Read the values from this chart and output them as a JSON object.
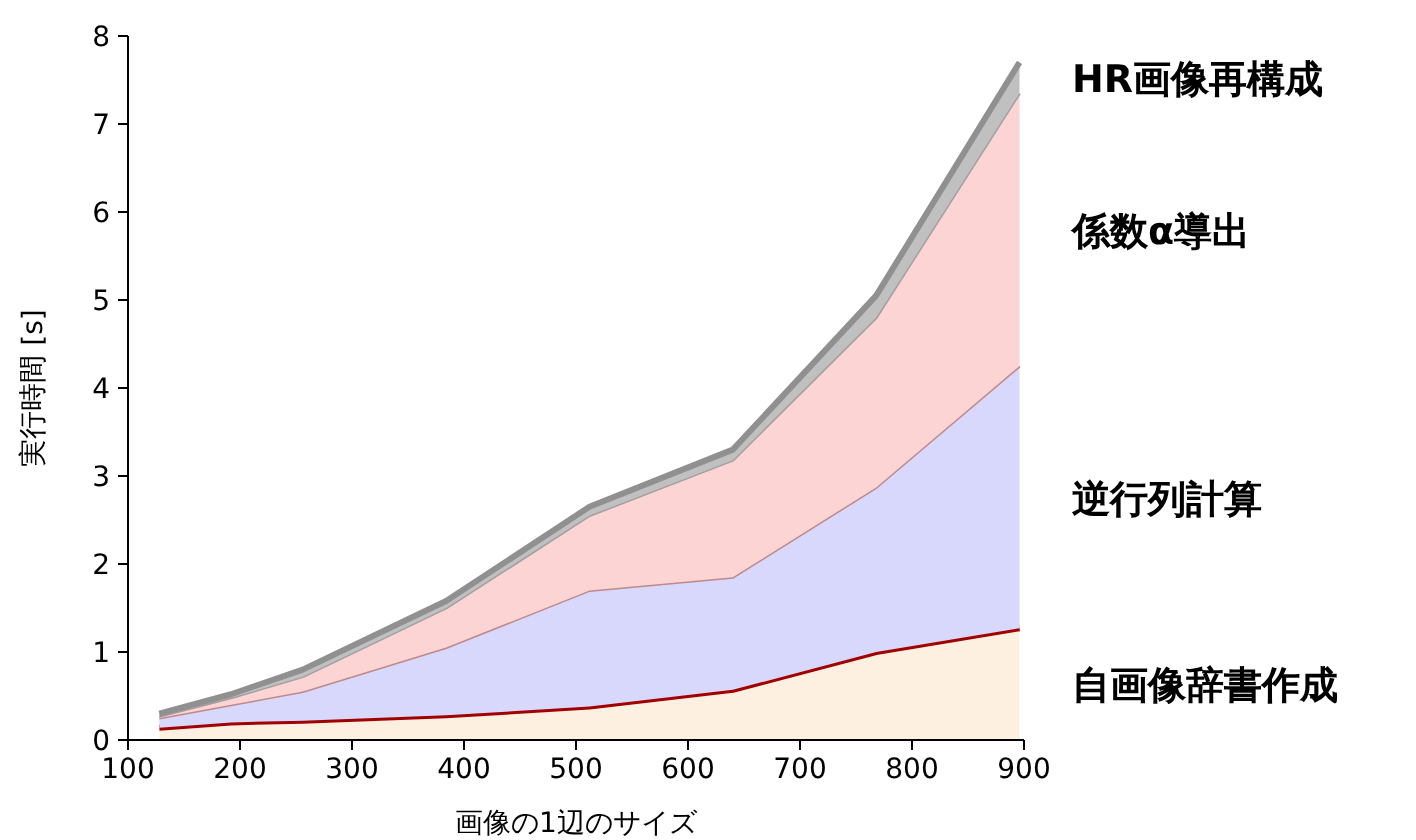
{
  "chart_data": {
    "type": "area",
    "stacked": true,
    "xlabel": "画像の1辺のサイズ",
    "ylabel": "実行時間 [s]",
    "x": [
      128,
      192,
      256,
      384,
      512,
      640,
      768,
      896
    ],
    "xlim": [
      100,
      900
    ],
    "xticks": [
      100,
      200,
      300,
      400,
      500,
      600,
      700,
      800,
      900
    ],
    "ylim": [
      0,
      8
    ],
    "yticks": [
      0,
      1,
      2,
      3,
      4,
      5,
      6,
      7,
      8
    ],
    "grid": false,
    "legend": false,
    "series": [
      {
        "name": "自画像辞書作成",
        "color": "#fdf0e0",
        "values": [
          0.14,
          0.2,
          0.22,
          0.28,
          0.38,
          0.57,
          1.0,
          1.27
        ]
      },
      {
        "name": "逆行列計算",
        "color": "#d8d8fc",
        "values": [
          0.11,
          0.2,
          0.33,
          0.77,
          1.32,
          1.28,
          1.87,
          2.98
        ]
      },
      {
        "name": "係数α導出",
        "color": "#fcd4d4",
        "values": [
          0.02,
          0.08,
          0.17,
          0.45,
          0.85,
          1.33,
          1.93,
          3.1
        ]
      },
      {
        "name": "HR画像再構成",
        "color": "#c0c0c0",
        "values": [
          0.03,
          0.04,
          0.08,
          0.08,
          0.1,
          0.12,
          0.25,
          0.35
        ]
      }
    ]
  }
}
